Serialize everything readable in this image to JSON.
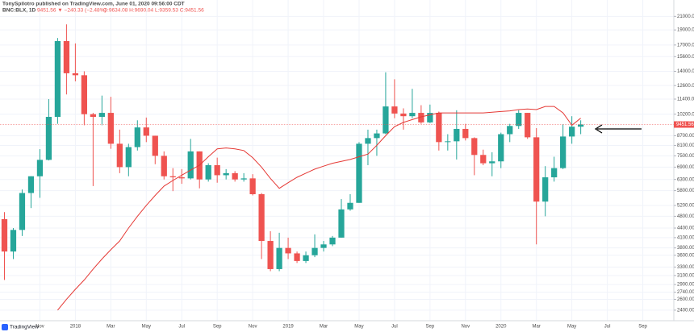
{
  "chart_data": {
    "type": "candlestick",
    "title": "TonySpilotro published on TradingView.com, June 01, 2020 09:56:00 CDT",
    "symbol": "BNC:BLX, 1D",
    "quote": "9451.56 ▼ −240.33 (−2.48%)",
    "ohlc_text": "O:9634.08 H:9690.04 L:9359.53 C:9451.56",
    "brand": "TradingView",
    "log_scale": true,
    "grid": true,
    "grid_color": "#f0f3fa",
    "up_color": "#26a69a",
    "down_color": "#ef5350",
    "ylim": [
      2220,
      23700
    ],
    "yticks": [
      {
        "value": 21000,
        "label": "21000.00"
      },
      {
        "value": 19000,
        "label": "19000.00"
      },
      {
        "value": 17000,
        "label": "17000.00"
      },
      {
        "value": 15600,
        "label": "15600.00"
      },
      {
        "value": 14000,
        "label": "14000.00"
      },
      {
        "value": 12600,
        "label": "12600.00"
      },
      {
        "value": 11400,
        "label": "11400.00"
      },
      {
        "value": 10200,
        "label": "10200.00"
      },
      {
        "value": 8700,
        "label": "8700.00"
      },
      {
        "value": 8100,
        "label": "8100.00"
      },
      {
        "value": 7500,
        "label": "7500.00"
      },
      {
        "value": 6900,
        "label": "6900.00"
      },
      {
        "value": 6300,
        "label": "6300.00"
      },
      {
        "value": 5800,
        "label": "5800.00"
      },
      {
        "value": 5200,
        "label": "5200.00"
      },
      {
        "value": 4800,
        "label": "4800.00"
      },
      {
        "value": 4400,
        "label": "4400.00"
      },
      {
        "value": 4100,
        "label": "4100.00"
      },
      {
        "value": 3800,
        "label": "3800.00"
      },
      {
        "value": 3600,
        "label": "3600.00"
      },
      {
        "value": 3300,
        "label": "3300.00"
      },
      {
        "value": 3100,
        "label": "3100.00"
      },
      {
        "value": 2900,
        "label": "2900.00"
      },
      {
        "value": 2740,
        "label": "2740.00"
      },
      {
        "value": 2600,
        "label": "2600.00"
      },
      {
        "value": 2400,
        "label": "2400.00"
      }
    ],
    "categories": [
      null,
      null,
      null,
      null,
      "Nov",
      null,
      null,
      null,
      "2018",
      null,
      null,
      null,
      "Mar",
      null,
      null,
      null,
      "May",
      null,
      null,
      null,
      "Jul",
      null,
      null,
      null,
      "Sep",
      null,
      null,
      null,
      "Nov",
      null,
      null,
      null,
      "2019",
      null,
      null,
      null,
      "Mar",
      null,
      null,
      null,
      "May",
      null,
      null,
      null,
      "Jul",
      null,
      null,
      null,
      "Sep",
      null,
      null,
      null,
      "Nov",
      null,
      null,
      null,
      "2020",
      null,
      null,
      null,
      "Mar",
      null,
      null,
      null,
      "May",
      null,
      null,
      null,
      "Jul",
      null,
      null,
      null,
      "Sep",
      null,
      null,
      null
    ],
    "open": [
      4700,
      3700,
      4340,
      5700,
      6450,
      7280,
      10000,
      17500,
      13800,
      13600,
      10200,
      10000,
      10300,
      8200,
      6900,
      8000,
      9250,
      8700,
      7500,
      6450,
      6400,
      6350,
      7750,
      6300,
      7000,
      6500,
      6600,
      6300,
      6350,
      5650,
      4000,
      3250,
      3800,
      3650,
      3450,
      3600,
      3800,
      3900,
      4100,
      5050,
      5300,
      8200,
      8550,
      8850,
      10800,
      10250,
      10050,
      10300,
      9600,
      10300,
      8300,
      8350,
      9150,
      8550,
      7550,
      7100,
      7200,
      8800,
      9350,
      10300,
      8600,
      5350,
      6400,
      6850,
      8650,
      9300,
      null,
      null,
      null,
      null,
      null,
      null,
      null,
      null,
      null,
      null
    ],
    "high": [
      4950,
      4400,
      5850,
      6450,
      7880,
      11400,
      17900,
      19800,
      17200,
      14000,
      10300,
      11700,
      11600,
      9100,
      8200,
      9750,
      9950,
      8700,
      7750,
      6850,
      6800,
      8500,
      7750,
      7100,
      7400,
      6800,
      6700,
      6600,
      6550,
      5700,
      4300,
      4250,
      4100,
      3700,
      3700,
      4200,
      4000,
      4150,
      5450,
      5650,
      8300,
      9100,
      9100,
      13900,
      13200,
      10650,
      12300,
      10900,
      10950,
      10400,
      8800,
      10500,
      9500,
      8600,
      7850,
      7700,
      8900,
      9500,
      10500,
      10300,
      9200,
      6950,
      7450,
      9450,
      10050,
      9750,
      null,
      null,
      null,
      null,
      null,
      null,
      null,
      null,
      null,
      null
    ],
    "low": [
      3000,
      3500,
      4150,
      5100,
      5500,
      7250,
      9500,
      11800,
      13000,
      9400,
      6000,
      9400,
      7900,
      6600,
      6450,
      7800,
      8300,
      7050,
      6300,
      5780,
      6100,
      6300,
      5900,
      6200,
      6150,
      6300,
      6200,
      6200,
      5600,
      3500,
      3200,
      3200,
      3500,
      3400,
      3400,
      3550,
      3700,
      3850,
      4100,
      5000,
      5300,
      7000,
      7500,
      8800,
      9900,
      9100,
      9900,
      9500,
      9550,
      7800,
      7800,
      7300,
      8400,
      6500,
      7000,
      6450,
      6850,
      8300,
      9150,
      8500,
      3900,
      4800,
      6200,
      6800,
      8200,
      8800,
      null,
      null,
      null,
      null,
      null,
      null,
      null,
      null,
      null,
      null
    ],
    "close": [
      3700,
      4340,
      5700,
      6450,
      7280,
      10000,
      17500,
      13800,
      13600,
      10200,
      10000,
      10300,
      8200,
      6900,
      8000,
      9250,
      8700,
      7500,
      6450,
      6400,
      6350,
      7750,
      6300,
      7000,
      6500,
      6600,
      6300,
      6350,
      5650,
      4000,
      3250,
      3800,
      3650,
      3450,
      3600,
      3800,
      3900,
      4100,
      5050,
      5300,
      8200,
      8550,
      8850,
      10800,
      10250,
      10050,
      10300,
      9600,
      10300,
      8300,
      8350,
      9150,
      8550,
      7550,
      7100,
      7200,
      8800,
      9350,
      10300,
      8600,
      5350,
      6400,
      6850,
      8650,
      9300,
      9451.56,
      null,
      null,
      null,
      null,
      null,
      null,
      null,
      null,
      null,
      null
    ],
    "ma": {
      "color": "#e53935",
      "values": [
        null,
        null,
        null,
        null,
        null,
        null,
        2400,
        2600,
        2800,
        3000,
        3250,
        3500,
        3750,
        4000,
        4400,
        4800,
        5200,
        5600,
        6000,
        6250,
        6500,
        6750,
        7000,
        7450,
        7900,
        7950,
        7900,
        7800,
        7400,
        6900,
        6350,
        5900,
        6150,
        6400,
        6600,
        6800,
        6950,
        7100,
        7200,
        7300,
        7450,
        7600,
        8100,
        8700,
        9300,
        9600,
        9800,
        10000,
        10150,
        10300,
        10300,
        10300,
        10300,
        10300,
        10300,
        10350,
        10400,
        10450,
        10550,
        10600,
        10550,
        10800,
        10800,
        10300,
        9400,
        9900,
        null,
        null,
        null,
        null,
        null,
        null,
        null,
        null,
        null,
        null
      ]
    }
  }
}
